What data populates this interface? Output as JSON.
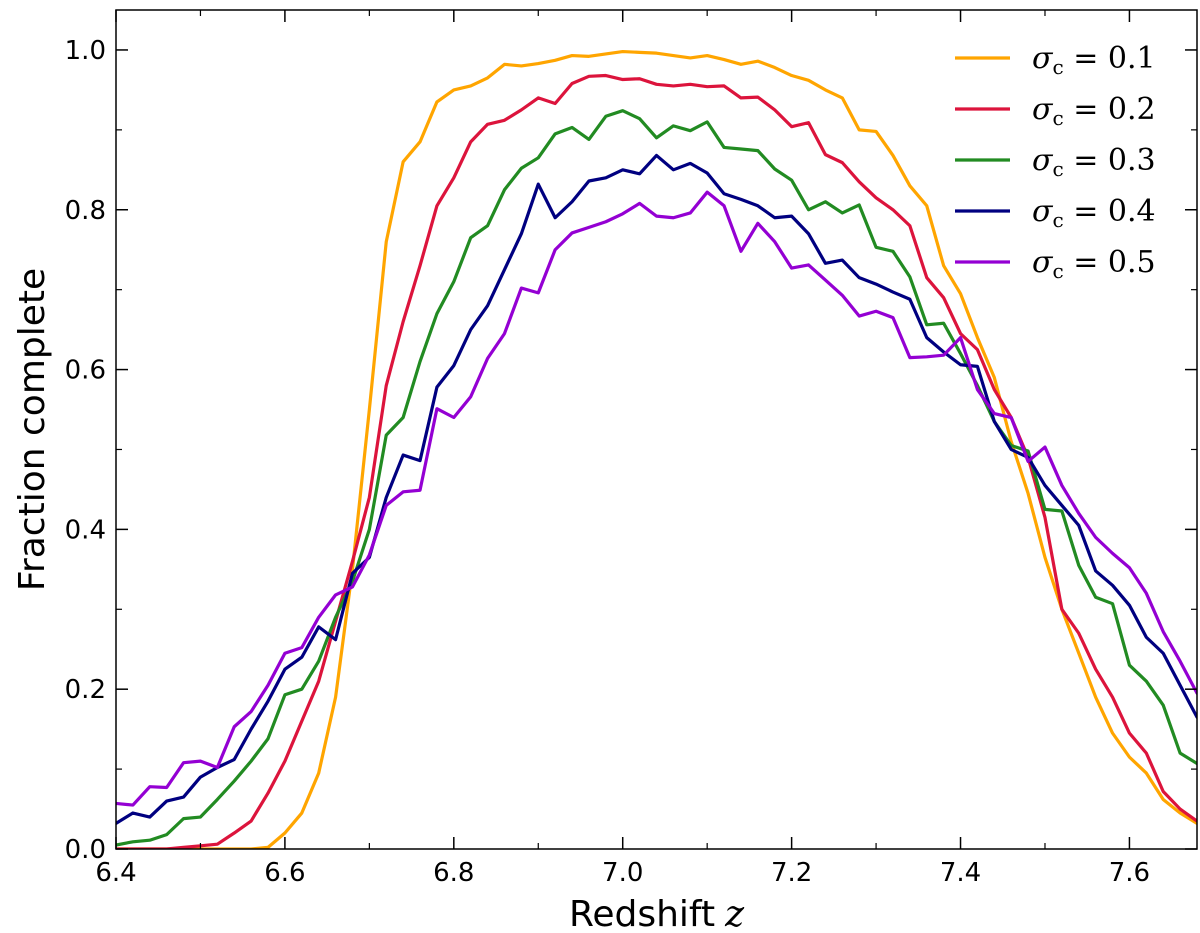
{
  "chart_data": {
    "type": "line",
    "title": "",
    "xlabel": "Redshift",
    "xlabel_var": "z",
    "ylabel": "Fraction complete",
    "xlim": [
      6.4,
      7.68
    ],
    "ylim": [
      0.0,
      1.05
    ],
    "xticks": [
      6.4,
      6.6,
      6.8,
      7.0,
      7.2,
      7.4,
      7.6
    ],
    "xtick_labels": [
      "6.4",
      "6.6",
      "6.8",
      "7.0",
      "7.2",
      "7.4",
      "7.6"
    ],
    "yticks": [
      0.0,
      0.2,
      0.4,
      0.6,
      0.8,
      1.0
    ],
    "ytick_labels": [
      "0.0",
      "0.2",
      "0.4",
      "0.6",
      "0.8",
      "1.0"
    ],
    "grid": false,
    "legend_position": "top-right",
    "x": [
      6.4,
      6.42,
      6.44,
      6.46,
      6.48,
      6.5,
      6.52,
      6.54,
      6.56,
      6.58,
      6.6,
      6.62,
      6.64,
      6.66,
      6.68,
      6.7,
      6.72,
      6.74,
      6.76,
      6.78,
      6.8,
      6.82,
      6.84,
      6.86,
      6.88,
      6.9,
      6.92,
      6.94,
      6.96,
      6.98,
      7.0,
      7.02,
      7.04,
      7.06,
      7.08,
      7.1,
      7.12,
      7.14,
      7.16,
      7.18,
      7.2,
      7.22,
      7.24,
      7.26,
      7.28,
      7.3,
      7.32,
      7.34,
      7.36,
      7.38,
      7.4,
      7.42,
      7.44,
      7.46,
      7.48,
      7.5,
      7.52,
      7.54,
      7.56,
      7.58,
      7.6,
      7.62,
      7.64,
      7.66,
      7.68
    ],
    "series": [
      {
        "name": "σ_c = 0.1",
        "label_main": "σ",
        "label_sub": "c",
        "label_value": " = 0.1",
        "color": "#ffa500",
        "values": [
          0.0,
          0.0,
          0.0,
          0.0,
          0.0,
          0.0,
          0.0,
          0.0,
          0.0,
          0.002,
          0.02,
          0.045,
          0.095,
          0.19,
          0.35,
          0.55,
          0.76,
          0.86,
          0.885,
          0.935,
          0.95,
          0.955,
          0.965,
          0.982,
          0.98,
          0.983,
          0.987,
          0.993,
          0.992,
          0.995,
          0.998,
          0.997,
          0.996,
          0.993,
          0.99,
          0.993,
          0.988,
          0.982,
          0.986,
          0.978,
          0.968,
          0.962,
          0.95,
          0.94,
          0.9,
          0.898,
          0.868,
          0.83,
          0.805,
          0.73,
          0.695,
          0.64,
          0.59,
          0.51,
          0.445,
          0.365,
          0.3,
          0.245,
          0.19,
          0.145,
          0.115,
          0.095,
          0.062,
          0.045,
          0.032
        ]
      },
      {
        "name": "σ_c = 0.2",
        "label_main": "σ",
        "label_sub": "c",
        "label_value": " = 0.2",
        "color": "#dc143c",
        "values": [
          0.0,
          0.0,
          0.0,
          0.0,
          0.002,
          0.004,
          0.006,
          0.02,
          0.035,
          0.07,
          0.11,
          0.16,
          0.21,
          0.285,
          0.36,
          0.44,
          0.58,
          0.66,
          0.73,
          0.805,
          0.84,
          0.885,
          0.907,
          0.912,
          0.925,
          0.94,
          0.933,
          0.958,
          0.967,
          0.968,
          0.963,
          0.964,
          0.957,
          0.955,
          0.957,
          0.954,
          0.955,
          0.94,
          0.941,
          0.925,
          0.904,
          0.909,
          0.869,
          0.859,
          0.835,
          0.815,
          0.8,
          0.78,
          0.715,
          0.69,
          0.645,
          0.625,
          0.575,
          0.54,
          0.49,
          0.415,
          0.3,
          0.27,
          0.225,
          0.19,
          0.145,
          0.12,
          0.072,
          0.05,
          0.035
        ]
      },
      {
        "name": "σ_c = 0.3",
        "label_main": "σ",
        "label_sub": "c",
        "label_value": " = 0.3",
        "color": "#228b22",
        "values": [
          0.005,
          0.009,
          0.011,
          0.018,
          0.038,
          0.04,
          0.062,
          0.085,
          0.11,
          0.138,
          0.193,
          0.2,
          0.235,
          0.29,
          0.335,
          0.4,
          0.518,
          0.54,
          0.61,
          0.67,
          0.71,
          0.765,
          0.78,
          0.825,
          0.852,
          0.865,
          0.895,
          0.903,
          0.888,
          0.917,
          0.924,
          0.914,
          0.89,
          0.905,
          0.899,
          0.91,
          0.878,
          0.876,
          0.874,
          0.851,
          0.837,
          0.8,
          0.81,
          0.796,
          0.806,
          0.753,
          0.748,
          0.716,
          0.656,
          0.658,
          0.62,
          0.58,
          0.535,
          0.505,
          0.498,
          0.425,
          0.423,
          0.355,
          0.315,
          0.307,
          0.23,
          0.21,
          0.18,
          0.12,
          0.107
        ]
      },
      {
        "name": "σ_c = 0.4",
        "label_main": "σ",
        "label_sub": "c",
        "label_value": " = 0.4",
        "color": "#000080",
        "values": [
          0.032,
          0.045,
          0.04,
          0.06,
          0.065,
          0.09,
          0.102,
          0.112,
          0.15,
          0.185,
          0.225,
          0.24,
          0.278,
          0.262,
          0.345,
          0.365,
          0.44,
          0.493,
          0.486,
          0.578,
          0.605,
          0.65,
          0.68,
          0.725,
          0.77,
          0.832,
          0.79,
          0.81,
          0.836,
          0.84,
          0.85,
          0.845,
          0.868,
          0.85,
          0.858,
          0.846,
          0.82,
          0.813,
          0.805,
          0.79,
          0.792,
          0.77,
          0.733,
          0.737,
          0.715,
          0.707,
          0.697,
          0.688,
          0.64,
          0.622,
          0.606,
          0.604,
          0.535,
          0.5,
          0.49,
          0.455,
          0.43,
          0.405,
          0.348,
          0.33,
          0.305,
          0.265,
          0.245,
          0.205,
          0.165
        ]
      },
      {
        "name": "σ_c = 0.5",
        "label_main": "σ",
        "label_sub": "c",
        "label_value": " = 0.5",
        "color": "#9400d3",
        "values": [
          0.057,
          0.055,
          0.078,
          0.077,
          0.108,
          0.11,
          0.102,
          0.153,
          0.172,
          0.205,
          0.245,
          0.252,
          0.29,
          0.318,
          0.328,
          0.368,
          0.43,
          0.447,
          0.449,
          0.551,
          0.54,
          0.566,
          0.614,
          0.645,
          0.702,
          0.696,
          0.75,
          0.771,
          0.778,
          0.785,
          0.795,
          0.808,
          0.792,
          0.79,
          0.796,
          0.822,
          0.805,
          0.748,
          0.783,
          0.76,
          0.727,
          0.731,
          0.712,
          0.693,
          0.667,
          0.673,
          0.665,
          0.615,
          0.616,
          0.618,
          0.64,
          0.575,
          0.545,
          0.54,
          0.485,
          0.503,
          0.455,
          0.42,
          0.39,
          0.37,
          0.352,
          0.32,
          0.272,
          0.235,
          0.195
        ]
      }
    ]
  }
}
